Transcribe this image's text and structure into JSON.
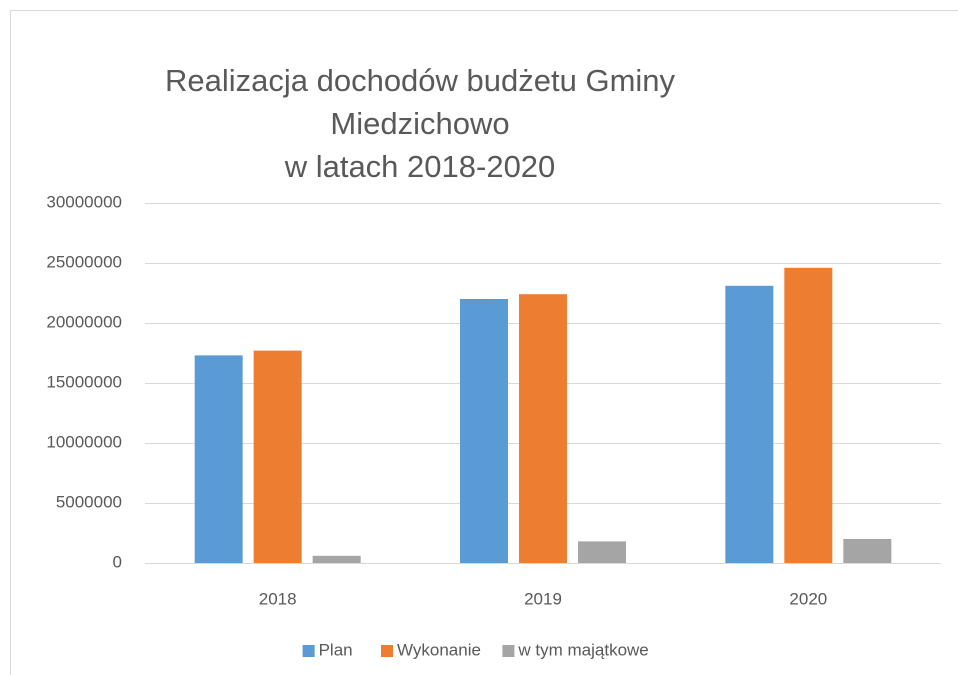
{
  "chart_data": {
    "type": "bar",
    "title": [
      "Realizacja dochodów budżetu Gminy",
      "Miedzichowo",
      "w latach 2018-2020"
    ],
    "categories": [
      "2018",
      "2019",
      "2020"
    ],
    "series": [
      {
        "name": "Plan",
        "color": "#5b9bd5",
        "values": [
          17300000,
          22000000,
          23100000
        ]
      },
      {
        "name": "Wykonanie",
        "color": "#ed7d31",
        "values": [
          17700000,
          22400000,
          24600000
        ]
      },
      {
        "name": "w tym majątkowe",
        "color": "#a5a5a5",
        "values": [
          600000,
          1800000,
          2000000
        ]
      }
    ],
    "ylim": [
      0,
      30000000
    ],
    "yticks": [
      0,
      5000000,
      10000000,
      15000000,
      20000000,
      25000000,
      30000000
    ],
    "grid": true,
    "legend": "bottom"
  }
}
